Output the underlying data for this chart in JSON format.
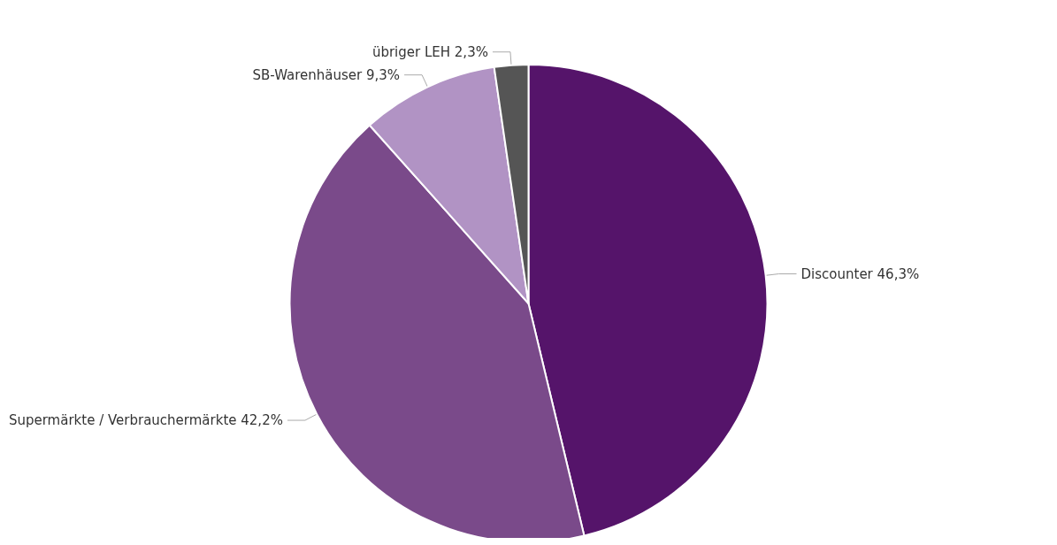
{
  "chart_data": {
    "type": "pie",
    "categories": [
      "Discounter",
      "Supermärkte / Verbrauchermärkte",
      "SB-Warenhäuser",
      "übriger LEH"
    ],
    "values": [
      46.3,
      42.2,
      9.3,
      2.3
    ],
    "value_labels": [
      "46,3%",
      "42,2%",
      "9,3%",
      "2,3%"
    ],
    "colors": [
      "#55146a",
      "#7a4a8a",
      "#b193c4",
      "#555555"
    ],
    "legend": false
  }
}
